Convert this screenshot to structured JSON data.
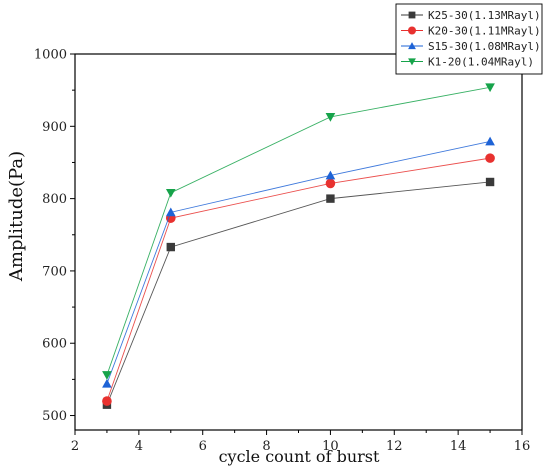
{
  "chart_data": {
    "type": "line",
    "title": "",
    "xlabel": "cycle count of burst",
    "ylabel": "Amplitude(Pa)",
    "xlim": [
      2,
      16
    ],
    "ylim": [
      480,
      1000
    ],
    "x_ticks": [
      2,
      4,
      6,
      8,
      10,
      12,
      14,
      16
    ],
    "y_ticks": [
      500,
      600,
      700,
      800,
      900,
      1000
    ],
    "grid": false,
    "legend_position": "top-right",
    "x": [
      3,
      5,
      10,
      15
    ],
    "series": [
      {
        "name": "K25-30(1.13MRayl)",
        "values": [
          515,
          733,
          800,
          823
        ],
        "color": "#3a3a3a",
        "marker": "square"
      },
      {
        "name": "K20-30(1.11MRayl)",
        "values": [
          520,
          773,
          821,
          856
        ],
        "color": "#e8312f",
        "marker": "circle"
      },
      {
        "name": "S15-30(1.08MRayl)",
        "values": [
          544,
          781,
          832,
          879
        ],
        "color": "#1e63d6",
        "marker": "triangle-up"
      },
      {
        "name": "K1-20(1.04MRayl)",
        "values": [
          556,
          808,
          913,
          954
        ],
        "color": "#16a34a",
        "marker": "triangle-down"
      }
    ]
  }
}
